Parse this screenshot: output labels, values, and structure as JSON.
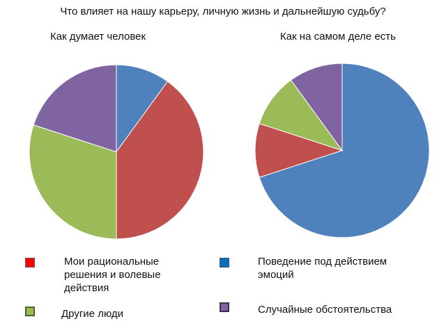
{
  "chart_data": {
    "title": "Что влияет на нашу карьеру, личную жизнь и дальнейшую судьбу?",
    "charts": [
      {
        "type": "pie",
        "title": "Как думает человек",
        "values": [
          10,
          40,
          30,
          20
        ]
      },
      {
        "type": "pie",
        "title": "Как на самом деле есть",
        "values": [
          70,
          10,
          10,
          10
        ]
      }
    ],
    "slice_colors": [
      "#4F81BD",
      "#C0504D",
      "#9BBB59",
      "#8064A2"
    ],
    "legend": [
      {
        "label": "Мои рациональные решения и волевые действия",
        "fill": "#FF0000",
        "border": "#A83232"
      },
      {
        "label": "Поведение под действием эмоций",
        "fill": "#0070C0",
        "border": "#2E5E8E"
      },
      {
        "label": "Другие люди",
        "fill": "#9BBB59",
        "border": "#4F6228"
      },
      {
        "label": "Случайные обстоятельства",
        "fill": "#8064A2",
        "border": "#403152"
      }
    ]
  }
}
